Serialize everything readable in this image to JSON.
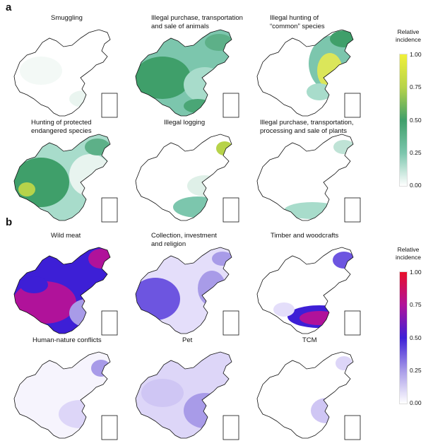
{
  "panel_a": {
    "label": "a",
    "maps": [
      {
        "title": "Smuggling"
      },
      {
        "title": "Illegal purchase, transportation\nand sale of animals"
      },
      {
        "title": "Illegal hunting of\n“common” species"
      },
      {
        "title": "Hunting of protected\nendangered species"
      },
      {
        "title": "Illegal logging"
      },
      {
        "title": "Illegal purchase, transportation,\nprocessing and sale of plants"
      }
    ],
    "legend": {
      "title": "Relative\nincidence",
      "ticks": [
        "1.00",
        "0.75",
        "0.50",
        "0.25",
        "0.00"
      ],
      "colors": [
        "#f0f03a",
        "#b7d34a",
        "#3f9f6a",
        "#7cc6ad",
        "#ffffff"
      ]
    }
  },
  "panel_b": {
    "label": "b",
    "maps": [
      {
        "title": "Wild meat"
      },
      {
        "title": "Collection, investment\nand religion"
      },
      {
        "title": "Timber and woodcrafts"
      },
      {
        "title": "Human-nature conflicts"
      },
      {
        "title": "Pet"
      },
      {
        "title": "TCM"
      }
    ],
    "legend": {
      "title": "Relative\nincidence",
      "ticks": [
        "1.00",
        "0.75",
        "0.50",
        "0.25",
        "0.00"
      ],
      "colors": [
        "#e8102a",
        "#b0129a",
        "#3d1fd6",
        "#a89be8",
        "#ffffff"
      ]
    }
  }
}
